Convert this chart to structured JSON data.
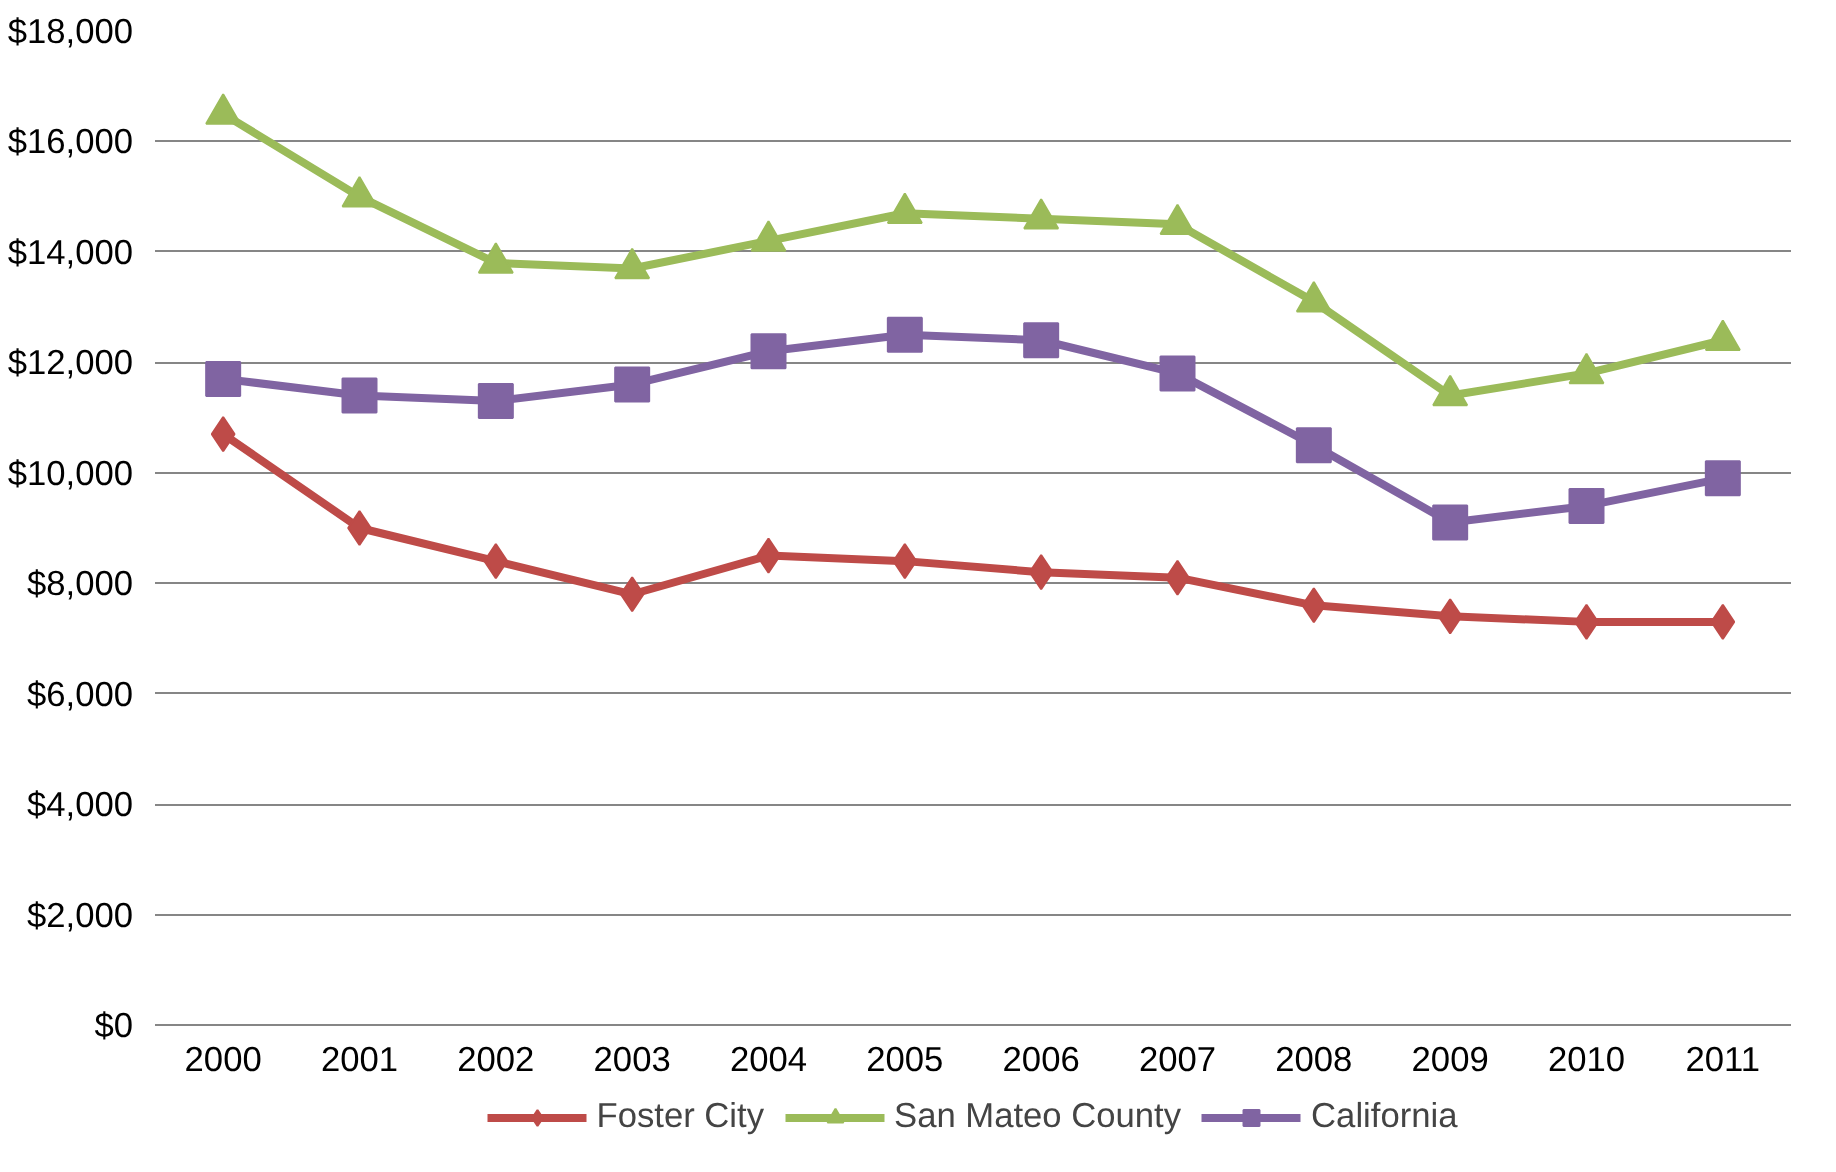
{
  "chart_data": {
    "type": "line",
    "categories": [
      "2000",
      "2001",
      "2002",
      "2003",
      "2004",
      "2005",
      "2006",
      "2007",
      "2008",
      "2009",
      "2010",
      "2011"
    ],
    "series": [
      {
        "name": "Foster City",
        "color": "#be4b48",
        "marker": "diamond",
        "values": [
          10700,
          9000,
          8400,
          7800,
          8500,
          8400,
          8200,
          8100,
          7600,
          7400,
          7300,
          7300
        ]
      },
      {
        "name": "San Mateo County",
        "color": "#9bbb59",
        "marker": "triangle",
        "values": [
          16500,
          15000,
          13800,
          13700,
          14200,
          14700,
          14600,
          14500,
          13100,
          11400,
          11800,
          12400
        ]
      },
      {
        "name": "California",
        "color": "#8064a2",
        "marker": "square",
        "values": [
          11700,
          11400,
          11300,
          11600,
          12200,
          12500,
          12400,
          11800,
          10500,
          9100,
          9400,
          9900
        ]
      }
    ],
    "ylim": [
      0,
      18000
    ],
    "yticks": [
      {
        "value": 0,
        "label": "$0"
      },
      {
        "value": 2000,
        "label": "$2,000"
      },
      {
        "value": 4000,
        "label": "$4,000"
      },
      {
        "value": 6000,
        "label": "$6,000"
      },
      {
        "value": 8000,
        "label": "$8,000"
      },
      {
        "value": 10000,
        "label": "$10,000"
      },
      {
        "value": 12000,
        "label": "$12,000"
      },
      {
        "value": 14000,
        "label": "$14,000"
      },
      {
        "value": 16000,
        "label": "$16,000"
      },
      {
        "value": 18000,
        "label": "$18,000"
      }
    ],
    "grid": "y",
    "legend": "bottom",
    "line_style": "solid"
  }
}
